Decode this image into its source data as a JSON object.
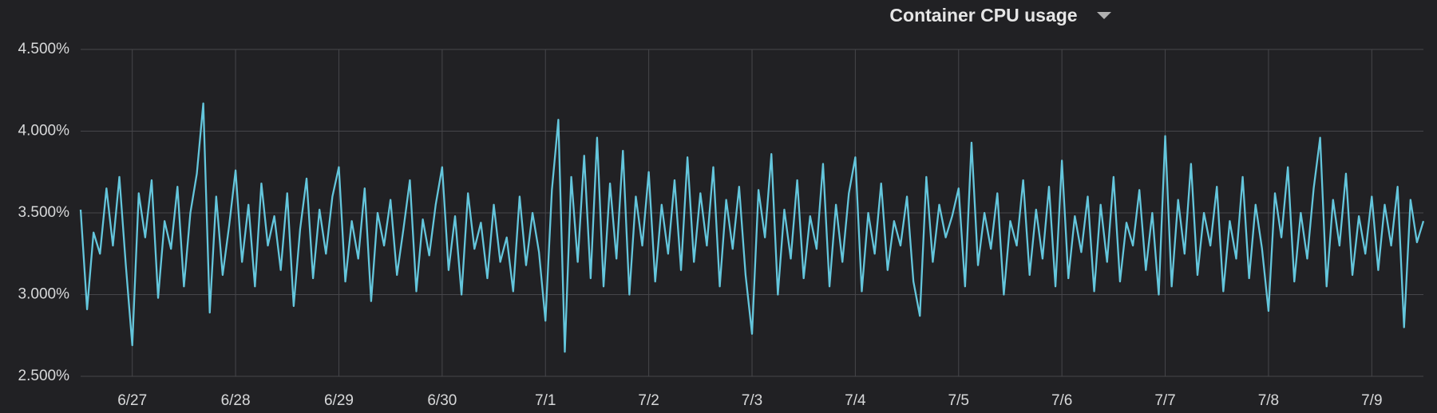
{
  "chart_data": {
    "type": "line",
    "title": "Container CPU usage",
    "categories": [
      null,
      null,
      null,
      null,
      null,
      null,
      null,
      null,
      "6/27",
      null,
      null,
      null,
      null,
      null,
      null,
      null,
      null,
      null,
      null,
      null,
      null,
      null,
      null,
      null,
      "6/28",
      null,
      null,
      null,
      null,
      null,
      null,
      null,
      null,
      null,
      null,
      null,
      null,
      null,
      null,
      null,
      "6/29",
      null,
      null,
      null,
      null,
      null,
      null,
      null,
      null,
      null,
      null,
      null,
      null,
      null,
      null,
      null,
      "6/30",
      null,
      null,
      null,
      null,
      null,
      null,
      null,
      null,
      null,
      null,
      null,
      null,
      null,
      null,
      null,
      "7/1",
      null,
      null,
      null,
      null,
      null,
      null,
      null,
      null,
      null,
      null,
      null,
      null,
      null,
      null,
      null,
      "7/2",
      null,
      null,
      null,
      null,
      null,
      null,
      null,
      null,
      null,
      null,
      null,
      null,
      null,
      null,
      null,
      "7/3",
      null,
      null,
      null,
      null,
      null,
      null,
      null,
      null,
      null,
      null,
      null,
      null,
      null,
      null,
      null,
      "7/4",
      null,
      null,
      null,
      null,
      null,
      null,
      null,
      null,
      null,
      null,
      null,
      null,
      null,
      null,
      null,
      "7/5",
      null,
      null,
      null,
      null,
      null,
      null,
      null,
      null,
      null,
      null,
      null,
      null,
      null,
      null,
      null,
      "7/6",
      null,
      null,
      null,
      null,
      null,
      null,
      null,
      null,
      null,
      null,
      null,
      null,
      null,
      null,
      null,
      "7/7",
      null,
      null,
      null,
      null,
      null,
      null,
      null,
      null,
      null,
      null,
      null,
      null,
      null,
      null,
      null,
      "7/8",
      null,
      null,
      null,
      null,
      null,
      null,
      null,
      null,
      null,
      null,
      null,
      null,
      null,
      null,
      null,
      "7/9",
      null,
      null,
      null,
      null,
      null,
      null,
      null,
      null
    ],
    "values": [
      3.52,
      2.91,
      3.38,
      3.25,
      3.65,
      3.3,
      3.72,
      3.18,
      2.69,
      3.62,
      3.35,
      3.7,
      2.98,
      3.45,
      3.28,
      3.66,
      3.05,
      3.5,
      3.74,
      4.17,
      2.89,
      3.6,
      3.12,
      3.42,
      3.76,
      3.2,
      3.55,
      3.05,
      3.68,
      3.3,
      3.48,
      3.15,
      3.62,
      2.93,
      3.4,
      3.71,
      3.1,
      3.52,
      3.25,
      3.6,
      3.78,
      3.08,
      3.45,
      3.22,
      3.65,
      2.96,
      3.5,
      3.3,
      3.58,
      3.12,
      3.4,
      3.7,
      3.02,
      3.46,
      3.24,
      3.55,
      3.78,
      3.15,
      3.48,
      3.0,
      3.62,
      3.28,
      3.44,
      3.1,
      3.55,
      3.2,
      3.35,
      3.02,
      3.6,
      3.18,
      3.5,
      3.26,
      2.84,
      3.64,
      4.07,
      2.65,
      3.72,
      3.2,
      3.85,
      3.1,
      3.96,
      3.05,
      3.68,
      3.22,
      3.88,
      3.0,
      3.6,
      3.3,
      3.75,
      3.08,
      3.55,
      3.25,
      3.7,
      3.15,
      3.84,
      3.2,
      3.62,
      3.3,
      3.78,
      3.05,
      3.58,
      3.28,
      3.66,
      3.12,
      2.76,
      3.64,
      3.35,
      3.86,
      3.0,
      3.52,
      3.22,
      3.7,
      3.1,
      3.48,
      3.28,
      3.8,
      3.05,
      3.55,
      3.2,
      3.62,
      3.84,
      3.02,
      3.5,
      3.25,
      3.68,
      3.15,
      3.45,
      3.3,
      3.6,
      3.08,
      2.87,
      3.72,
      3.2,
      3.55,
      3.35,
      3.48,
      3.65,
      3.05,
      3.93,
      3.18,
      3.5,
      3.28,
      3.62,
      3.0,
      3.45,
      3.3,
      3.7,
      3.12,
      3.52,
      3.22,
      3.66,
      3.05,
      3.82,
      3.1,
      3.48,
      3.26,
      3.6,
      3.02,
      3.55,
      3.2,
      3.72,
      3.08,
      3.44,
      3.3,
      3.64,
      3.15,
      3.5,
      3.0,
      3.97,
      3.05,
      3.58,
      3.25,
      3.8,
      3.12,
      3.5,
      3.3,
      3.66,
      3.02,
      3.45,
      3.22,
      3.72,
      3.1,
      3.55,
      3.28,
      2.9,
      3.62,
      3.35,
      3.78,
      3.08,
      3.5,
      3.22,
      3.65,
      3.96,
      3.05,
      3.58,
      3.3,
      3.74,
      3.12,
      3.48,
      3.25,
      3.6,
      3.15,
      3.55,
      3.3,
      3.66,
      2.8,
      3.58,
      3.32,
      3.45
    ],
    "color": "#64c6dc",
    "ylim": [
      2.5,
      4.5
    ],
    "yticks": [
      {
        "value": 2.5,
        "label": "2.500%"
      },
      {
        "value": 3.0,
        "label": "3.000%"
      },
      {
        "value": 3.5,
        "label": "3.500%"
      },
      {
        "value": 4.0,
        "label": "4.000%"
      },
      {
        "value": 4.5,
        "label": "4.500%"
      }
    ],
    "grid": true
  }
}
